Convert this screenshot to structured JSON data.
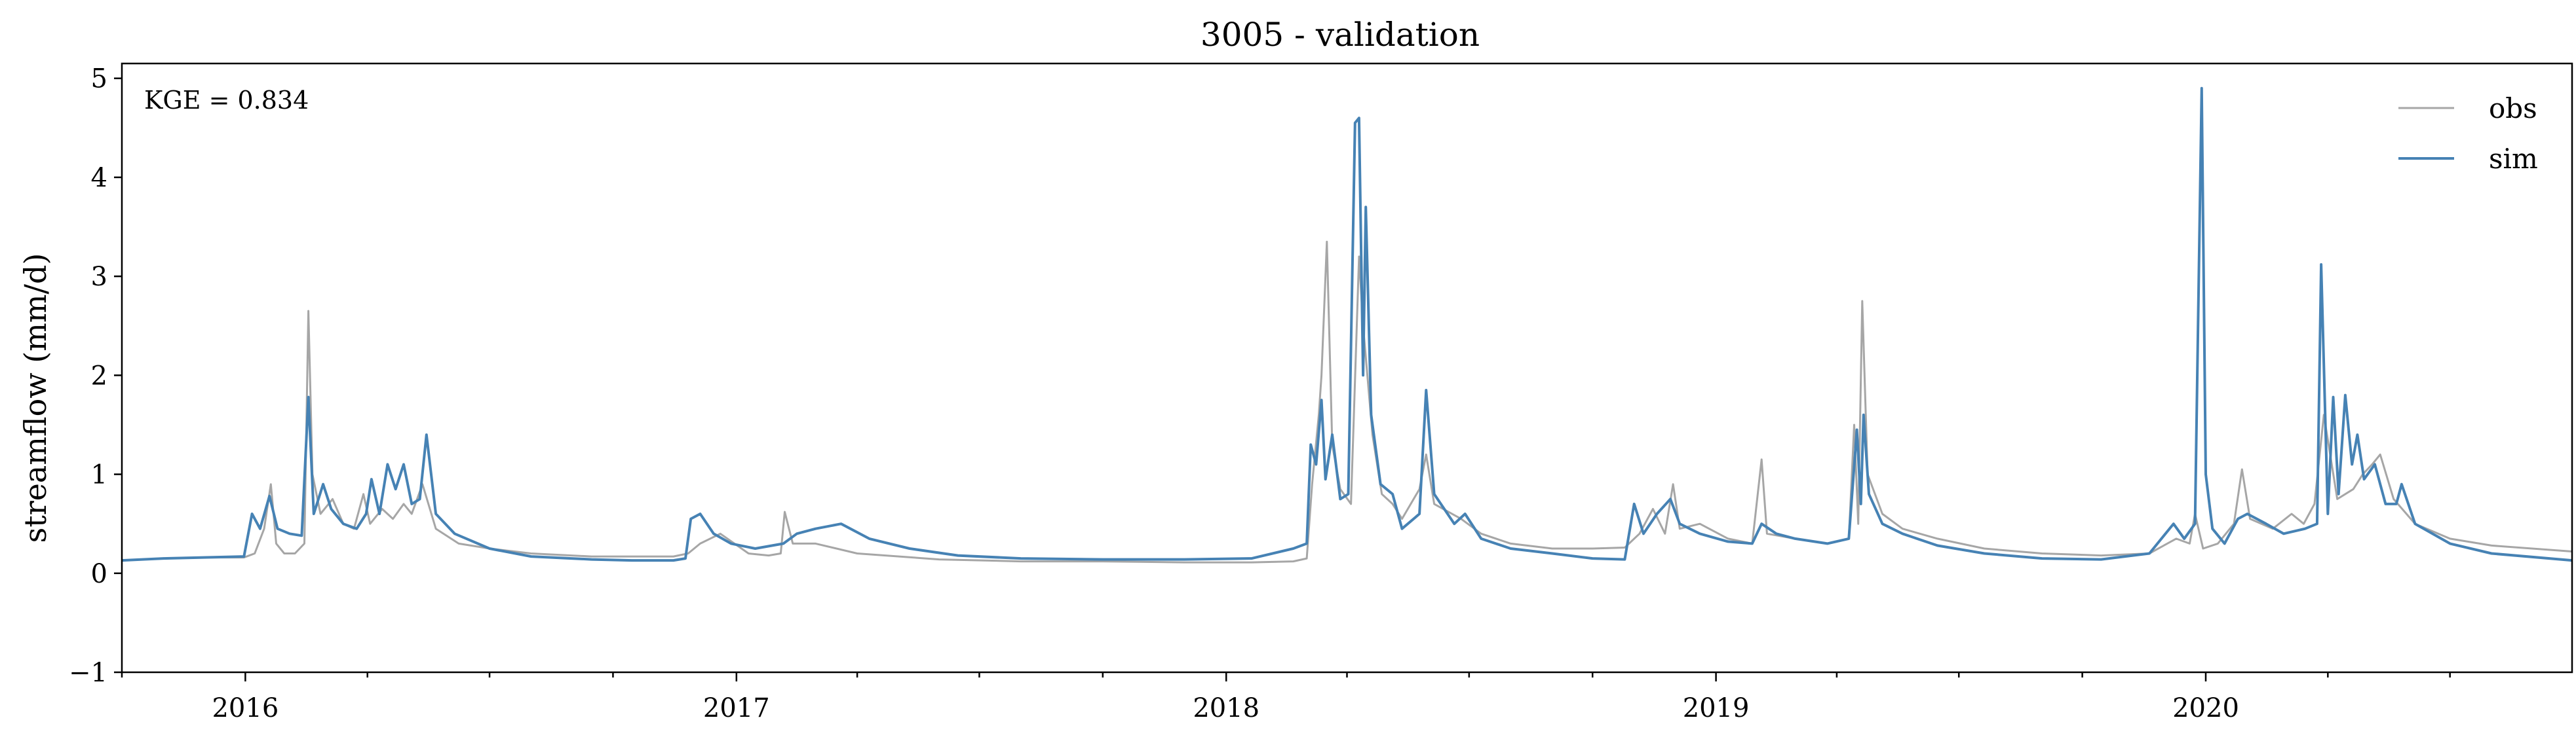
{
  "chart_data": {
    "type": "line",
    "title": "3005 - validation",
    "xlabel": "",
    "ylabel": "streamflow (mm/d)",
    "x_range": [
      "2015-10-01",
      "2020-09-30"
    ],
    "ylim": [
      -1,
      5.15
    ],
    "yticks": [
      -1,
      0,
      1,
      2,
      3,
      4,
      5
    ],
    "ytick_labels": [
      "−1",
      "0",
      "1",
      "2",
      "3",
      "4",
      "5"
    ],
    "xtick_labels": [
      {
        "date": "2016-01-01",
        "label": "2016"
      },
      {
        "date": "2017-01-01",
        "label": "2017"
      },
      {
        "date": "2018-01-01",
        "label": "2018"
      },
      {
        "date": "2019-01-01",
        "label": "2019"
      },
      {
        "date": "2020-01-01",
        "label": "2020"
      }
    ],
    "grid": false,
    "legend_position": "top-right",
    "annotation": "KGE = 0.834",
    "series": [
      {
        "name": "obs",
        "color": "#a6a6a6",
        "points": [
          [
            "2015-10-01",
            0.13
          ],
          [
            "2015-11-01",
            0.15
          ],
          [
            "2015-12-01",
            0.16
          ],
          [
            "2015-12-31",
            0.16
          ],
          [
            "2016-01-08",
            0.2
          ],
          [
            "2016-01-15",
            0.45
          ],
          [
            "2016-01-20",
            0.9
          ],
          [
            "2016-01-24",
            0.3
          ],
          [
            "2016-01-30",
            0.2
          ],
          [
            "2016-02-07",
            0.2
          ],
          [
            "2016-02-14",
            0.3
          ],
          [
            "2016-02-17",
            2.65
          ],
          [
            "2016-02-20",
            1.0
          ],
          [
            "2016-02-26",
            0.6
          ],
          [
            "2016-03-06",
            0.75
          ],
          [
            "2016-03-14",
            0.5
          ],
          [
            "2016-03-22",
            0.45
          ],
          [
            "2016-03-29",
            0.8
          ],
          [
            "2016-04-03",
            0.5
          ],
          [
            "2016-04-12",
            0.65
          ],
          [
            "2016-04-20",
            0.55
          ],
          [
            "2016-04-28",
            0.7
          ],
          [
            "2016-05-04",
            0.6
          ],
          [
            "2016-05-12",
            0.9
          ],
          [
            "2016-05-22",
            0.45
          ],
          [
            "2016-06-08",
            0.3
          ],
          [
            "2016-07-01",
            0.25
          ],
          [
            "2016-08-01",
            0.2
          ],
          [
            "2016-09-15",
            0.17
          ],
          [
            "2016-10-15",
            0.17
          ],
          [
            "2016-11-15",
            0.17
          ],
          [
            "2016-11-26",
            0.2
          ],
          [
            "2016-12-05",
            0.3
          ],
          [
            "2016-12-20",
            0.4
          ],
          [
            "2017-01-10",
            0.2
          ],
          [
            "2017-01-25",
            0.18
          ],
          [
            "2017-02-03",
            0.2
          ],
          [
            "2017-02-06",
            0.62
          ],
          [
            "2017-02-12",
            0.3
          ],
          [
            "2017-03-01",
            0.3
          ],
          [
            "2017-04-01",
            0.2
          ],
          [
            "2017-06-01",
            0.14
          ],
          [
            "2017-08-01",
            0.12
          ],
          [
            "2017-10-01",
            0.12
          ],
          [
            "2017-12-01",
            0.11
          ],
          [
            "2018-01-20",
            0.11
          ],
          [
            "2018-02-20",
            0.12
          ],
          [
            "2018-03-02",
            0.15
          ],
          [
            "2018-03-06",
            0.9
          ],
          [
            "2018-03-11",
            1.6
          ],
          [
            "2018-03-13",
            2.0
          ],
          [
            "2018-03-17",
            3.35
          ],
          [
            "2018-03-21",
            1.3
          ],
          [
            "2018-03-27",
            0.85
          ],
          [
            "2018-04-04",
            0.7
          ],
          [
            "2018-04-10",
            3.2
          ],
          [
            "2018-04-13",
            2.5
          ],
          [
            "2018-04-20",
            1.4
          ],
          [
            "2018-04-27",
            0.8
          ],
          [
            "2018-05-05",
            0.7
          ],
          [
            "2018-05-12",
            0.55
          ],
          [
            "2018-05-25",
            0.85
          ],
          [
            "2018-05-30",
            1.2
          ],
          [
            "2018-06-05",
            0.7
          ],
          [
            "2018-06-25",
            0.55
          ],
          [
            "2018-07-10",
            0.4
          ],
          [
            "2018-08-01",
            0.3
          ],
          [
            "2018-09-01",
            0.25
          ],
          [
            "2018-10-01",
            0.25
          ],
          [
            "2018-10-25",
            0.26
          ],
          [
            "2018-11-05",
            0.4
          ],
          [
            "2018-11-15",
            0.65
          ],
          [
            "2018-11-24",
            0.4
          ],
          [
            "2018-11-30",
            0.9
          ],
          [
            "2018-12-05",
            0.45
          ],
          [
            "2018-12-20",
            0.5
          ],
          [
            "2019-01-10",
            0.35
          ],
          [
            "2019-01-28",
            0.3
          ],
          [
            "2019-02-04",
            1.15
          ],
          [
            "2019-02-08",
            0.4
          ],
          [
            "2019-03-01",
            0.35
          ],
          [
            "2019-03-25",
            0.3
          ],
          [
            "2019-04-10",
            0.35
          ],
          [
            "2019-04-14",
            1.5
          ],
          [
            "2019-04-17",
            0.5
          ],
          [
            "2019-04-20",
            2.75
          ],
          [
            "2019-04-24",
            1.0
          ],
          [
            "2019-05-05",
            0.6
          ],
          [
            "2019-05-20",
            0.45
          ],
          [
            "2019-06-15",
            0.35
          ],
          [
            "2019-07-20",
            0.25
          ],
          [
            "2019-09-01",
            0.2
          ],
          [
            "2019-10-15",
            0.18
          ],
          [
            "2019-11-20",
            0.2
          ],
          [
            "2019-12-10",
            0.35
          ],
          [
            "2019-12-20",
            0.3
          ],
          [
            "2019-12-24",
            0.6
          ],
          [
            "2019-12-30",
            0.25
          ],
          [
            "2020-01-10",
            0.3
          ],
          [
            "2020-01-22",
            0.5
          ],
          [
            "2020-01-28",
            1.05
          ],
          [
            "2020-02-03",
            0.55
          ],
          [
            "2020-02-20",
            0.45
          ],
          [
            "2020-03-05",
            0.6
          ],
          [
            "2020-03-14",
            0.5
          ],
          [
            "2020-03-22",
            0.7
          ],
          [
            "2020-03-29",
            1.6
          ],
          [
            "2020-04-08",
            0.75
          ],
          [
            "2020-04-20",
            0.85
          ],
          [
            "2020-04-27",
            1.0
          ],
          [
            "2020-05-04",
            1.1
          ],
          [
            "2020-05-10",
            1.2
          ],
          [
            "2020-05-20",
            0.75
          ],
          [
            "2020-06-05",
            0.5
          ],
          [
            "2020-07-01",
            0.35
          ],
          [
            "2020-08-01",
            0.28
          ],
          [
            "2020-09-30",
            0.22
          ]
        ]
      },
      {
        "name": "sim",
        "color": "#4682b4",
        "points": [
          [
            "2015-10-01",
            0.13
          ],
          [
            "2015-11-01",
            0.15
          ],
          [
            "2015-12-01",
            0.16
          ],
          [
            "2015-12-31",
            0.17
          ],
          [
            "2016-01-06",
            0.6
          ],
          [
            "2016-01-12",
            0.45
          ],
          [
            "2016-01-19",
            0.78
          ],
          [
            "2016-01-25",
            0.45
          ],
          [
            "2016-02-03",
            0.4
          ],
          [
            "2016-02-12",
            0.38
          ],
          [
            "2016-02-17",
            1.78
          ],
          [
            "2016-02-21",
            0.6
          ],
          [
            "2016-02-28",
            0.9
          ],
          [
            "2016-03-05",
            0.65
          ],
          [
            "2016-03-14",
            0.5
          ],
          [
            "2016-03-24",
            0.45
          ],
          [
            "2016-03-31",
            0.6
          ],
          [
            "2016-04-04",
            0.95
          ],
          [
            "2016-04-10",
            0.6
          ],
          [
            "2016-04-16",
            1.1
          ],
          [
            "2016-04-22",
            0.85
          ],
          [
            "2016-04-28",
            1.1
          ],
          [
            "2016-05-04",
            0.7
          ],
          [
            "2016-05-10",
            0.75
          ],
          [
            "2016-05-15",
            1.4
          ],
          [
            "2016-05-22",
            0.6
          ],
          [
            "2016-06-05",
            0.4
          ],
          [
            "2016-07-01",
            0.25
          ],
          [
            "2016-08-01",
            0.17
          ],
          [
            "2016-09-15",
            0.14
          ],
          [
            "2016-10-15",
            0.13
          ],
          [
            "2016-11-15",
            0.13
          ],
          [
            "2016-11-24",
            0.15
          ],
          [
            "2016-11-28",
            0.55
          ],
          [
            "2016-12-05",
            0.6
          ],
          [
            "2016-12-15",
            0.4
          ],
          [
            "2016-12-28",
            0.3
          ],
          [
            "2017-01-15",
            0.25
          ],
          [
            "2017-02-05",
            0.3
          ],
          [
            "2017-02-15",
            0.4
          ],
          [
            "2017-03-01",
            0.45
          ],
          [
            "2017-03-20",
            0.5
          ],
          [
            "2017-04-10",
            0.35
          ],
          [
            "2017-05-10",
            0.25
          ],
          [
            "2017-06-15",
            0.18
          ],
          [
            "2017-08-01",
            0.15
          ],
          [
            "2017-10-01",
            0.14
          ],
          [
            "2017-12-01",
            0.14
          ],
          [
            "2018-01-20",
            0.15
          ],
          [
            "2018-02-20",
            0.25
          ],
          [
            "2018-03-02",
            0.3
          ],
          [
            "2018-03-05",
            1.3
          ],
          [
            "2018-03-09",
            1.1
          ],
          [
            "2018-03-13",
            1.75
          ],
          [
            "2018-03-16",
            0.95
          ],
          [
            "2018-03-21",
            1.4
          ],
          [
            "2018-03-27",
            0.75
          ],
          [
            "2018-04-02",
            0.8
          ],
          [
            "2018-04-07",
            4.55
          ],
          [
            "2018-04-10",
            4.6
          ],
          [
            "2018-04-13",
            2.0
          ],
          [
            "2018-04-15",
            3.7
          ],
          [
            "2018-04-19",
            1.6
          ],
          [
            "2018-04-26",
            0.9
          ],
          [
            "2018-05-05",
            0.8
          ],
          [
            "2018-05-12",
            0.45
          ],
          [
            "2018-05-25",
            0.6
          ],
          [
            "2018-05-30",
            1.85
          ],
          [
            "2018-06-05",
            0.8
          ],
          [
            "2018-06-20",
            0.5
          ],
          [
            "2018-06-28",
            0.6
          ],
          [
            "2018-07-10",
            0.35
          ],
          [
            "2018-08-01",
            0.25
          ],
          [
            "2018-09-01",
            0.2
          ],
          [
            "2018-10-01",
            0.15
          ],
          [
            "2018-10-25",
            0.14
          ],
          [
            "2018-11-01",
            0.7
          ],
          [
            "2018-11-08",
            0.4
          ],
          [
            "2018-11-18",
            0.6
          ],
          [
            "2018-11-28",
            0.75
          ],
          [
            "2018-12-05",
            0.5
          ],
          [
            "2018-12-20",
            0.4
          ],
          [
            "2019-01-10",
            0.32
          ],
          [
            "2019-01-28",
            0.3
          ],
          [
            "2019-02-04",
            0.5
          ],
          [
            "2019-02-15",
            0.4
          ],
          [
            "2019-03-01",
            0.35
          ],
          [
            "2019-03-25",
            0.3
          ],
          [
            "2019-04-10",
            0.35
          ],
          [
            "2019-04-16",
            1.45
          ],
          [
            "2019-04-19",
            0.7
          ],
          [
            "2019-04-21",
            1.6
          ],
          [
            "2019-04-25",
            0.8
          ],
          [
            "2019-05-05",
            0.5
          ],
          [
            "2019-05-20",
            0.4
          ],
          [
            "2019-06-15",
            0.28
          ],
          [
            "2019-07-20",
            0.2
          ],
          [
            "2019-09-01",
            0.15
          ],
          [
            "2019-10-15",
            0.14
          ],
          [
            "2019-11-20",
            0.2
          ],
          [
            "2019-12-08",
            0.5
          ],
          [
            "2019-12-16",
            0.35
          ],
          [
            "2019-12-24",
            0.5
          ],
          [
            "2019-12-29",
            4.9
          ],
          [
            "2020-01-01",
            1.0
          ],
          [
            "2020-01-06",
            0.45
          ],
          [
            "2020-01-15",
            0.3
          ],
          [
            "2020-01-25",
            0.55
          ],
          [
            "2020-02-01",
            0.6
          ],
          [
            "2020-02-15",
            0.5
          ],
          [
            "2020-02-28",
            0.4
          ],
          [
            "2020-03-15",
            0.45
          ],
          [
            "2020-03-24",
            0.5
          ],
          [
            "2020-03-27",
            3.12
          ],
          [
            "2020-04-01",
            0.6
          ],
          [
            "2020-04-05",
            1.78
          ],
          [
            "2020-04-09",
            0.8
          ],
          [
            "2020-04-14",
            1.8
          ],
          [
            "2020-04-19",
            1.1
          ],
          [
            "2020-04-23",
            1.4
          ],
          [
            "2020-04-28",
            0.95
          ],
          [
            "2020-05-06",
            1.1
          ],
          [
            "2020-05-14",
            0.7
          ],
          [
            "2020-05-22",
            0.7
          ],
          [
            "2020-05-26",
            0.9
          ],
          [
            "2020-06-05",
            0.5
          ],
          [
            "2020-07-01",
            0.3
          ],
          [
            "2020-08-01",
            0.2
          ],
          [
            "2020-09-30",
            0.13
          ]
        ]
      }
    ]
  }
}
